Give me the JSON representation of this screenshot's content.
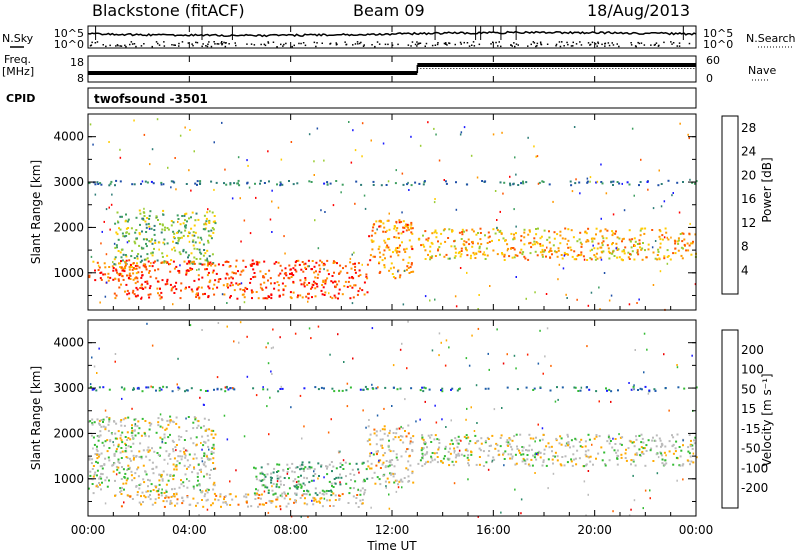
{
  "header": {
    "station": "Blackstone (fitACF)",
    "beam": "Beam 09",
    "date": "18/Aug/2013"
  },
  "side_labels": {
    "nsky": "N.Sky",
    "nsearch": "N.Search",
    "freq": "Freq.",
    "freq_unit": "[MHz]",
    "nave": "Nave",
    "cpid": "CPID",
    "cpid_value": "twofsound  -3501"
  },
  "noise_panel": {
    "ticks": [
      "10^5",
      "10^0"
    ]
  },
  "freq_panel": {
    "left_ticks": [
      "18",
      "8"
    ],
    "right_ticks": [
      "60",
      "0"
    ]
  },
  "x_axis": {
    "label": "Time UT",
    "ticks": [
      "00:00",
      "04:00",
      "08:00",
      "12:00",
      "16:00",
      "20:00",
      "00:00"
    ]
  },
  "colors": {
    "power": [
      "#1a1aff",
      "#1f4fa8",
      "#2e7d78",
      "#3e9e60",
      "#99cc33",
      "#ffcc00",
      "#ff9900",
      "#ff5500",
      "#ff0000"
    ],
    "velocity": [
      "#1a1aff",
      "#1f5fa8",
      "#2a8a6a",
      "#33bb33",
      "#bbbbbb",
      "#bbbbbb",
      "#ffaa00",
      "#ff6600",
      "#ff2200",
      "#ee0000"
    ]
  },
  "chart_data": [
    {
      "type": "heatmap",
      "panel": "power",
      "xlabel": "Time UT",
      "ylabel": "Slant Range [km]",
      "xlim": [
        0,
        24
      ],
      "ylim": [
        180,
        4500
      ],
      "yticks": [
        "1000",
        "2000",
        "3000",
        "4000"
      ],
      "colorbar": {
        "label": "Power [dB]",
        "ticks": [
          "28",
          "24",
          "20",
          "16",
          "12",
          "8",
          "4"
        ],
        "range": [
          0,
          30
        ]
      },
      "features": [
        {
          "t_start": 0,
          "t_end": 2.0,
          "range_low": 800,
          "range_high": 1300,
          "value": 24
        },
        {
          "t_start": 1.0,
          "t_end": 5.0,
          "range_low": 1200,
          "range_high": 2400,
          "value": 14
        },
        {
          "t_start": 1.0,
          "t_end": 11.0,
          "range_low": 450,
          "range_high": 1300,
          "value": 26
        },
        {
          "t_start": 11.0,
          "t_end": 12.8,
          "range_low": 900,
          "range_high": 2200,
          "value": 22
        },
        {
          "t_start": 13.0,
          "t_end": 24.0,
          "range_low": 1300,
          "range_high": 2000,
          "value": 20
        },
        {
          "t_start": 0,
          "t_end": 24.0,
          "range_low": 2950,
          "range_high": 3050,
          "value": 8
        }
      ]
    },
    {
      "type": "heatmap",
      "panel": "velocity",
      "xlabel": "Time UT",
      "ylabel": "Slant Range [km]",
      "xlim": [
        0,
        24
      ],
      "ylim": [
        180,
        4500
      ],
      "yticks": [
        "1000",
        "2000",
        "3000",
        "4000"
      ],
      "colorbar": {
        "label": "Velocity [m s⁻¹]",
        "ticks": [
          "200",
          "100",
          "50",
          "15",
          "-15",
          "-50",
          "-100",
          "-200"
        ],
        "range": [
          -250,
          250
        ]
      },
      "features": [
        {
          "t_start": 0,
          "t_end": 5.0,
          "range_low": 700,
          "range_high": 2400,
          "value": 0
        },
        {
          "t_start": 6.5,
          "t_end": 11.0,
          "range_low": 650,
          "range_high": 1400,
          "value": -60
        },
        {
          "t_start": 1.0,
          "t_end": 11.0,
          "range_low": 400,
          "range_high": 700,
          "value": 40
        },
        {
          "t_start": 11.0,
          "t_end": 12.8,
          "range_low": 900,
          "range_high": 2200,
          "value": 20
        },
        {
          "t_start": 13.0,
          "t_end": 24.0,
          "range_low": 1300,
          "range_high": 2000,
          "value": 0
        },
        {
          "t_start": 0,
          "t_end": 24.0,
          "range_low": 2950,
          "range_high": 3050,
          "value": -150
        }
      ]
    }
  ],
  "frequency_series": {
    "segments": [
      {
        "t_start": 0,
        "t_end": 13.0,
        "freq_mhz": 10.5
      },
      {
        "t_start": 13.0,
        "t_end": 24.0,
        "freq_mhz": 14.5
      }
    ]
  }
}
